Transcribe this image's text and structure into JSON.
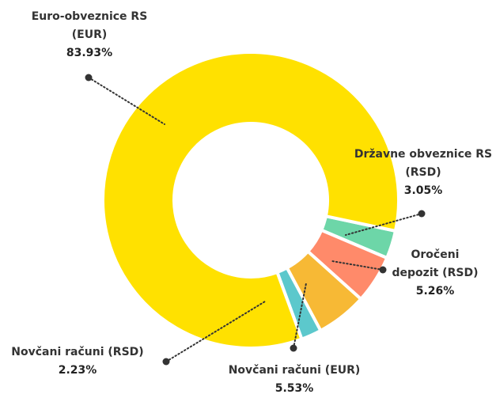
{
  "chart_data": {
    "type": "donut",
    "categories": [
      "Euro-obveznice RS (EUR)",
      "Državne obveznice RS (RSD)",
      "Oročeni depozit (RSD)",
      "Novčani računi (EUR)",
      "Novčani računi (RSD)"
    ],
    "values": [
      83.93,
      3.05,
      5.26,
      5.53,
      2.23
    ],
    "value_labels": [
      "83.93%",
      "3.05%",
      "5.26%",
      "5.53%",
      "2.23%"
    ],
    "colors": [
      "#FFE100",
      "#6DD6A8",
      "#FF8A6A",
      "#F7B935",
      "#5CC8CC"
    ]
  }
}
